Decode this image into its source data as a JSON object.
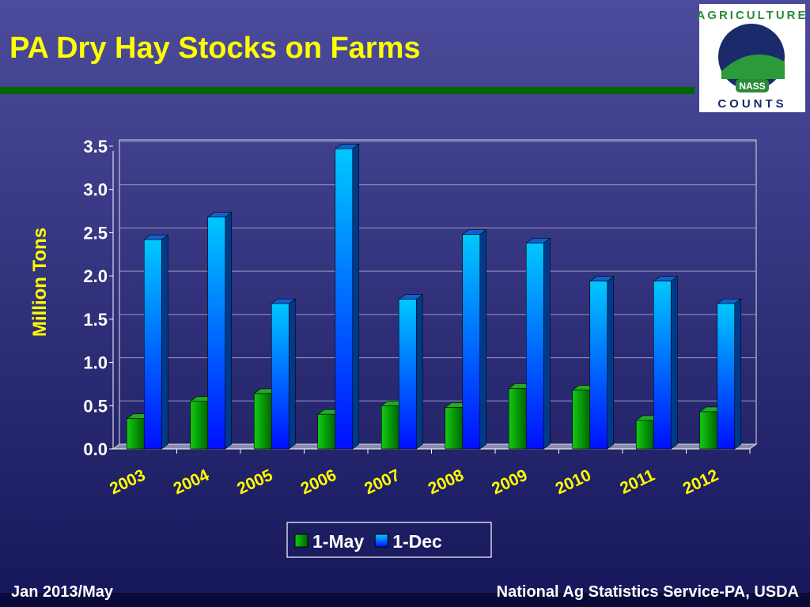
{
  "chart_data": {
    "type": "bar",
    "title": "PA Dry Hay Stocks on Farms",
    "y_label": "Million Tons",
    "categories": [
      "2003",
      "2004",
      "2005",
      "2006",
      "2007",
      "2008",
      "2009",
      "2010",
      "2011",
      "2012"
    ],
    "series": [
      {
        "name": "1-May",
        "color": "#11cc11",
        "values": [
          0.35,
          0.55,
          0.64,
          0.4,
          0.5,
          0.48,
          0.7,
          0.68,
          0.33,
          0.43
        ]
      },
      {
        "name": "1-Dec",
        "color": "#00c8ff",
        "values": [
          2.42,
          2.68,
          1.68,
          3.47,
          1.73,
          2.48,
          2.38,
          1.94,
          1.94,
          1.68
        ]
      }
    ],
    "ylim": [
      0,
      3.5
    ],
    "yticks": [
      {
        "value": 0,
        "label": "0.0"
      },
      0.5,
      {
        "value": 1,
        "label": "1.0"
      },
      1.5,
      {
        "value": 2,
        "label": "2.0"
      },
      2.5,
      {
        "value": 3,
        "label": "3.0"
      },
      3.5
    ],
    "grid": true,
    "legend": "bottom"
  },
  "logo": {
    "top": "AGRICULTURE",
    "badge": "NASS",
    "bottom": "COUNTS"
  },
  "footer": {
    "left": "Jan 2013/May",
    "right": "National Ag Statistics Service-PA, USDA"
  }
}
